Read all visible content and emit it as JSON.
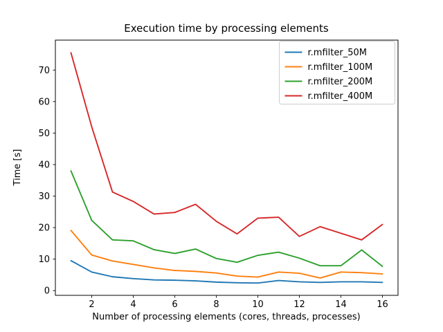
{
  "figure": {
    "background": "#ffffff",
    "spine_color": "#000000",
    "legend_border_color": "#cccccc"
  },
  "chart_data": {
    "type": "line",
    "title": "Execution time by processing elements",
    "xlabel": "Number of processing elements (cores, threads, processes)",
    "ylabel": "Time [s]",
    "x": [
      1,
      2,
      3,
      4,
      5,
      6,
      7,
      8,
      9,
      10,
      11,
      12,
      13,
      14,
      15,
      16
    ],
    "series": [
      {
        "name": "r.mfilter_50M",
        "color": "#1f77b4",
        "values": [
          9.5,
          5.9,
          4.4,
          3.8,
          3.4,
          3.3,
          3.1,
          2.7,
          2.5,
          2.4,
          3.2,
          2.8,
          2.6,
          2.8,
          2.8,
          2.6
        ]
      },
      {
        "name": "r.mfilter_100M",
        "color": "#ff7f0e",
        "values": [
          19.1,
          11.3,
          9.4,
          8.3,
          7.2,
          6.4,
          6.1,
          5.6,
          4.6,
          4.3,
          5.9,
          5.5,
          4.0,
          5.9,
          5.7,
          5.3
        ]
      },
      {
        "name": "r.mfilter_200M",
        "color": "#2ca02c",
        "values": [
          38.0,
          22.3,
          16.1,
          15.8,
          13.0,
          11.8,
          13.2,
          10.2,
          9.0,
          11.2,
          12.2,
          10.3,
          7.9,
          7.9,
          12.9,
          7.7
        ]
      },
      {
        "name": "r.mfilter_400M",
        "color": "#d62728",
        "values": [
          75.5,
          52.0,
          31.3,
          28.3,
          24.3,
          24.8,
          27.4,
          22.0,
          18.0,
          23.0,
          23.3,
          17.2,
          20.3,
          18.2,
          16.1,
          21.0
        ]
      }
    ],
    "xticks": [
      2,
      4,
      6,
      8,
      10,
      12,
      14,
      16
    ],
    "yticks": [
      0,
      10,
      20,
      30,
      40,
      50,
      60,
      70
    ],
    "xlim": [
      0.25,
      16.75
    ],
    "ylim": [
      -1.5,
      79.5
    ],
    "grid": false,
    "legend_position": "upper right"
  }
}
